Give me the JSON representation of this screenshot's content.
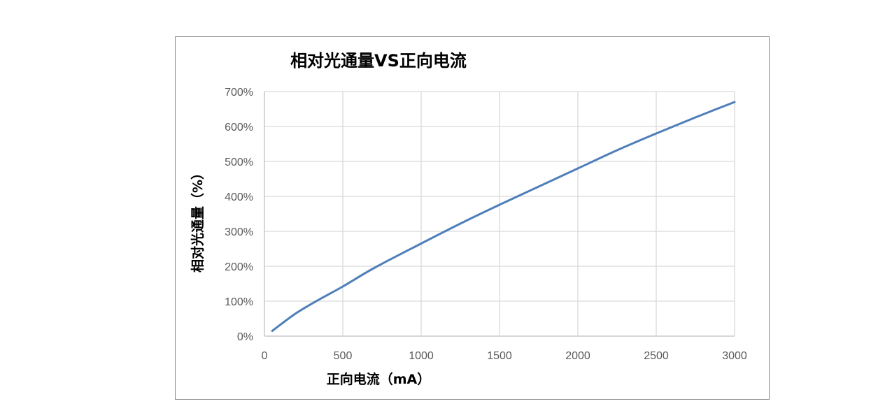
{
  "chart_data": {
    "type": "line",
    "title": "相对光通量VS正向电流",
    "xlabel": "正向电流（mA）",
    "ylabel": "相对光通量（%）",
    "xlim": [
      0,
      3000
    ],
    "ylim": [
      0,
      700
    ],
    "x_ticks": [
      0,
      500,
      1000,
      1500,
      2000,
      2500,
      3000
    ],
    "x_tick_labels": [
      "0",
      "500",
      "1000",
      "1500",
      "2000",
      "2500",
      "3000"
    ],
    "y_ticks": [
      0,
      100,
      200,
      300,
      400,
      500,
      600,
      700
    ],
    "y_tick_labels": [
      "0%",
      "100%",
      "200%",
      "300%",
      "400%",
      "500%",
      "600%",
      "700%"
    ],
    "grid": true,
    "legend": "none",
    "series": [
      {
        "color": "#4f7fb9",
        "x": [
          50,
          200,
          350,
          500,
          700,
          1000,
          1250,
          1500,
          1750,
          2000,
          2250,
          2500,
          2750,
          3000
        ],
        "y": [
          15,
          65,
          105,
          142,
          195,
          265,
          322,
          376,
          428,
          480,
          532,
          580,
          626,
          670
        ]
      }
    ]
  }
}
